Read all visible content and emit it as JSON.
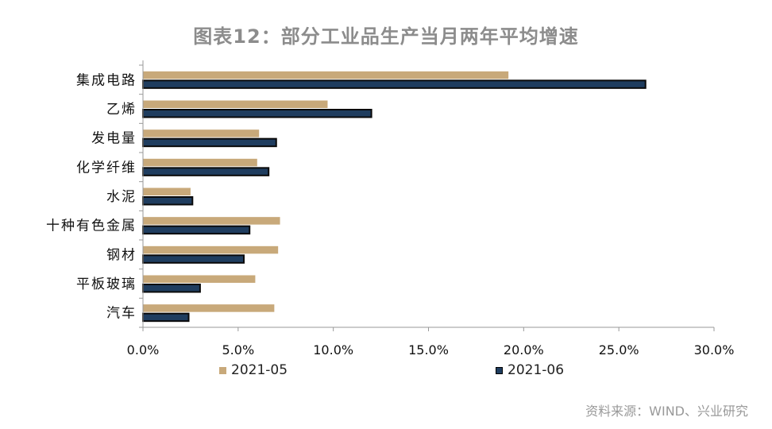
{
  "colors": {
    "series1": "#c8a97a",
    "series2": "#1f3d5f",
    "border": "#0a0a0a",
    "axis": "#999999",
    "title": "#8c8c8c"
  },
  "chart_data": {
    "type": "bar",
    "orientation": "horizontal",
    "title": "图表12：部分工业品生产当月两年平均增速",
    "categories": [
      "集成电路",
      "乙烯",
      "发电量",
      "化学纤维",
      "水泥",
      "十种有色金属",
      "钢材",
      "平板玻璃",
      "汽车"
    ],
    "series": [
      {
        "name": "2021-05",
        "values": [
          19.2,
          9.7,
          6.1,
          6.0,
          2.5,
          7.2,
          7.1,
          5.9,
          6.9
        ]
      },
      {
        "name": "2021-06",
        "values": [
          26.4,
          12.0,
          7.0,
          6.6,
          2.6,
          5.6,
          5.3,
          3.0,
          2.4
        ]
      }
    ],
    "xlim": [
      0,
      30
    ],
    "xticks": [
      "0.0%",
      "5.0%",
      "10.0%",
      "15.0%",
      "20.0%",
      "25.0%",
      "30.0%"
    ],
    "xtick_values": [
      0,
      5,
      10,
      15,
      20,
      25,
      30
    ],
    "grid": false,
    "legend_position": "bottom"
  },
  "source": "资料来源：WIND、兴业研究"
}
